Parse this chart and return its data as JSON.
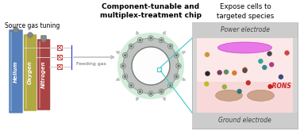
{
  "title_center": "Component-tunable and\nmultiplex-treatment chip",
  "title_right": "Expose cells to\ntargeted species",
  "label_source": "Source gas tuning",
  "label_feeding": "Feeding gas",
  "label_power": "Power electrode",
  "label_ground": "Ground electrode",
  "label_rons": "●RONS",
  "label_helium": "Helium",
  "label_oxygen": "Oxygen",
  "label_nitrogen": "Nitrogen",
  "bg_color": "#ffffff",
  "cylinder_helium_color": "#5580bb",
  "cylinder_oxygen_color": "#b0a840",
  "cylinder_nitrogen_color": "#aa4444",
  "chip_outer_color": "#c8e8d0",
  "chip_ring_color": "#c0c4c0",
  "chip_center_color": "#f4f4f4",
  "chip_center_border": "#888888",
  "electrode_box_color": "#d4d4d4",
  "power_strip_color": "#cccccc",
  "ground_strip_color": "#cccccc",
  "cell_region_color": "#f8d8d8",
  "plasma_ellipse_color": "#e878e8",
  "dots_colors": [
    "#111111",
    "#333333",
    "#1a7070",
    "#208080",
    "#cc3030",
    "#b82020",
    "#e05015",
    "#c8901a",
    "#88b030",
    "#484848",
    "#18a090",
    "#a03070",
    "#d07020",
    "#b8b815",
    "#508050",
    "#283870",
    "#702850"
  ],
  "arrow_color": "#b8b8b8",
  "connector_blue_color": "#4040cc",
  "valve_color": "#cc3333",
  "cyan_line_color": "#40c8c8",
  "port_color": "#707878",
  "port_edge_color": "#505858"
}
